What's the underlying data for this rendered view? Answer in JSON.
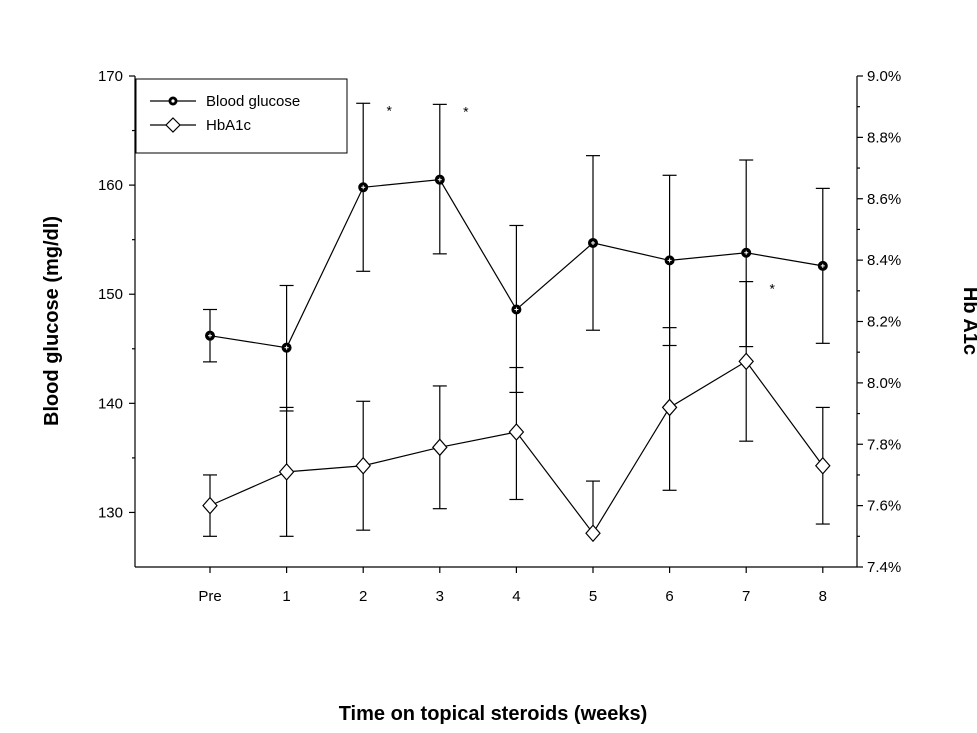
{
  "chart_data": {
    "type": "line",
    "categories": [
      "Pre",
      "1",
      "2",
      "3",
      "4",
      "5",
      "6",
      "7",
      "8"
    ],
    "xlabel": "Time on topical steroids (weeks)",
    "ylabel": "Blood glucose (mg/dl)",
    "y2label": "Hb A1c",
    "ylim": [
      125,
      170
    ],
    "yticks": [
      "130",
      "140",
      "150",
      "160",
      "170"
    ],
    "y2lim": [
      7.4,
      9.0
    ],
    "y2ticks": [
      "7.4%",
      "7.6%",
      "7.8%",
      "8.0%",
      "8.2%",
      "8.4%",
      "8.6%",
      "8.8%",
      "9.0%"
    ],
    "grid": false,
    "legend_position": "top-left",
    "series": [
      {
        "name": "Blood glucose",
        "axis": "left",
        "marker": "filled-circle",
        "values": [
          146.2,
          145.1,
          159.8,
          160.5,
          148.6,
          154.7,
          153.1,
          153.8,
          152.6
        ],
        "err_low": [
          143.8,
          139.3,
          152.1,
          153.7,
          141.0,
          146.7,
          145.3,
          145.2,
          145.5
        ],
        "err_high": [
          148.6,
          150.8,
          167.5,
          167.4,
          156.3,
          162.7,
          160.9,
          162.3,
          159.7
        ]
      },
      {
        "name": "HbA1c",
        "axis": "right",
        "marker": "open-diamond",
        "values": [
          7.6,
          7.71,
          7.73,
          7.79,
          7.84,
          7.51,
          7.92,
          8.07,
          7.73
        ],
        "err_low": [
          7.5,
          7.5,
          7.52,
          7.59,
          7.62,
          7.51,
          7.65,
          7.81,
          7.54
        ],
        "err_high": [
          7.7,
          7.92,
          7.94,
          7.99,
          8.05,
          7.68,
          8.18,
          8.33,
          7.92
        ]
      }
    ],
    "annotations": [
      {
        "text": "*",
        "category": "2",
        "series": "Blood glucose"
      },
      {
        "text": "*",
        "category": "3",
        "series": "Blood glucose"
      },
      {
        "text": "*",
        "category": "7",
        "series": "HbA1c"
      }
    ]
  }
}
